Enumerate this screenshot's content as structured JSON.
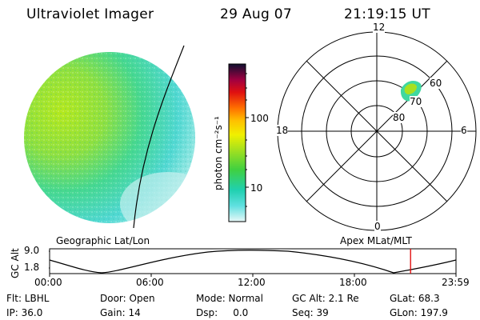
{
  "header": {
    "instrument": "Ultraviolet Imager",
    "date": "29 Aug 07",
    "time": "21:19:15 UT"
  },
  "colorbar": {
    "label": "photon cm⁻²s⁻¹",
    "ticks": [
      "100",
      "10"
    ]
  },
  "polar": {
    "mlt_labels": {
      "top": "12",
      "left": "18",
      "right": "6",
      "bottom": "0"
    },
    "lat_labels": [
      "60",
      "70",
      "80"
    ]
  },
  "panels": {
    "left_caption": "Geographic Lat/Lon",
    "right_caption": "Apex MLat/MLT"
  },
  "alt_plot": {
    "ylabel": "GC Alt",
    "yticks": [
      "9.0",
      "1.8"
    ],
    "xticks": [
      "00:00",
      "06:00",
      "12:00",
      "18:00",
      "23:59"
    ],
    "current_time_fraction": 0.8882
  },
  "info": {
    "flt": "Flt: LBHL",
    "door": "Door: Open",
    "mode": "Mode: Normal",
    "gcalt": "GC Alt: 2.1 Re",
    "glat": "GLat:  68.3",
    "ip": "IP: 36.0",
    "gain": "Gain: 14",
    "dsp": "Dsp:     0.0",
    "seq": "Seq: 39",
    "glon": "GLon: 197.9"
  },
  "colors": {
    "cursor": "#e00000",
    "disk_bright": "#a8e020",
    "disk_mid": "#40d89a",
    "disk_dim": "#50d8d8"
  }
}
